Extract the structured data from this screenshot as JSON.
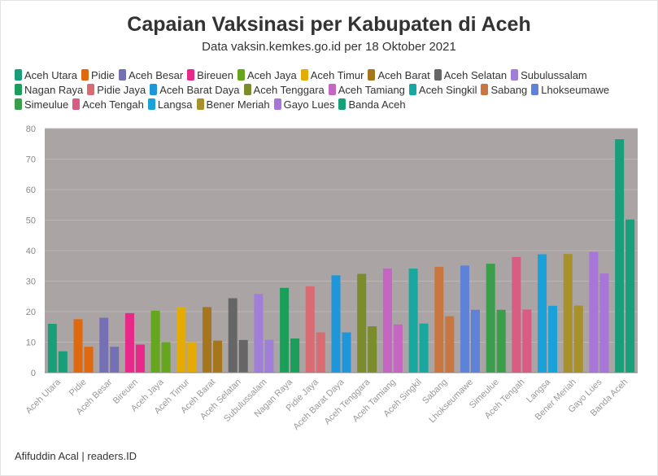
{
  "title": "Capaian Vaksinasi per Kabupaten di Aceh",
  "subtitle": "Data vaksin.kemkes.go.id per 18 Oktober 2021",
  "footer": "Afifuddin Acal | readers.ID",
  "chart_data": {
    "type": "bar",
    "ylim": [
      0,
      80
    ],
    "yticks": [
      0,
      10,
      20,
      30,
      40,
      50,
      60,
      70,
      80
    ],
    "plot_background": "#aaa4a4",
    "grid": true,
    "legend_position": "top",
    "categories": [
      "Aceh Utara",
      "Pidie",
      "Aceh Besar",
      "Bireuen",
      "Aceh Jaya",
      "Aceh Timur",
      "Aceh Barat",
      "Aceh Selatan",
      "Subulussalam",
      "Nagan Raya",
      "Pidie Jaya",
      "Aceh Barat Daya",
      "Aceh Tenggara",
      "Aceh Tamiang",
      "Aceh Singkil",
      "Sabang",
      "Lhokseumawe",
      "Simeulue",
      "Aceh Tengah",
      "Langsa",
      "Bener Meriah",
      "Gayo Lues",
      "Banda Aceh"
    ],
    "colors": [
      "#1a9e77",
      "#e0680f",
      "#7570b3",
      "#e7298a",
      "#66a61e",
      "#e6ab02",
      "#a6761d",
      "#666666",
      "#a07fd9",
      "#1b9e5a",
      "#d96b73",
      "#1f96d9",
      "#7a8c2b",
      "#c466c2",
      "#19a8a0",
      "#c97740",
      "#5f82d9",
      "#3a9e4a",
      "#d95c83",
      "#1aa1d9",
      "#a8902a",
      "#a875d9",
      "#17a07a"
    ],
    "values": [
      [
        16,
        7
      ],
      [
        17.5,
        8.5
      ],
      [
        18,
        8.5
      ],
      [
        19.5,
        9.2
      ],
      [
        20.3,
        10
      ],
      [
        21.6,
        10
      ],
      [
        21.5,
        10.5
      ],
      [
        24.4,
        10.7
      ],
      [
        25.8,
        10.8
      ],
      [
        27.8,
        11.2
      ],
      [
        28.3,
        13.2
      ],
      [
        31.9,
        13.2
      ],
      [
        32.4,
        15.2
      ],
      [
        34.1,
        15.8
      ],
      [
        34.1,
        16.1
      ],
      [
        34.7,
        18.5
      ],
      [
        35.1,
        20.6
      ],
      [
        35.7,
        20.6
      ],
      [
        37.9,
        20.7
      ],
      [
        38.8,
        21.9
      ],
      [
        38.9,
        22
      ],
      [
        39.6,
        32.5
      ],
      [
        76.5,
        50.2
      ]
    ]
  }
}
